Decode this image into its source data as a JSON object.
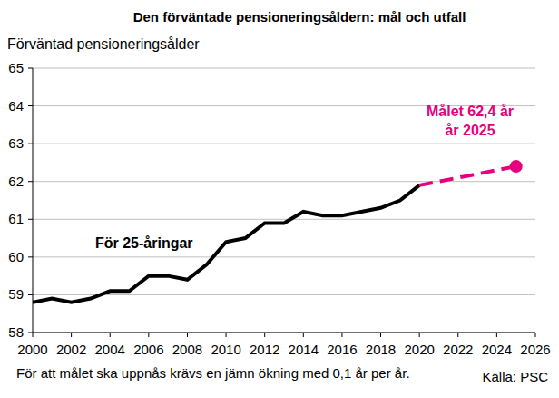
{
  "chart_data": {
    "type": "line",
    "title": "Den förväntade pensioneringsåldern: mål och utfall",
    "y_label": "Förväntad pensioneringsålder",
    "annotations": [
      "Målet 62,4 år",
      "år 2025"
    ],
    "footnote": "För att målet ska uppnås krävs en jämn ökning med 0,1 år per år.",
    "source": "Källa: PSC",
    "xlim": [
      2000,
      2026
    ],
    "xticks": [
      2000,
      2002,
      2004,
      2006,
      2008,
      2010,
      2012,
      2014,
      2016,
      2018,
      2020,
      2022,
      2024,
      2026
    ],
    "ylim": [
      58,
      65
    ],
    "yticks": [
      58,
      59,
      60,
      61,
      62,
      63,
      64,
      65
    ],
    "grid": true,
    "series": [
      {
        "name": "För 25-åringar",
        "color": "#000000",
        "line_style": "solid",
        "x": [
          2000,
          2001,
          2002,
          2003,
          2004,
          2005,
          2006,
          2007,
          2008,
          2009,
          2010,
          2011,
          2012,
          2013,
          2014,
          2015,
          2016,
          2017,
          2018,
          2019,
          2020
        ],
        "values": [
          58.8,
          58.9,
          58.8,
          58.9,
          59.1,
          59.1,
          59.5,
          59.5,
          59.4,
          59.8,
          60.4,
          60.5,
          60.9,
          60.9,
          61.2,
          61.1,
          61.1,
          61.2,
          61.3,
          61.5,
          61.9
        ]
      },
      {
        "color": "#e6007e",
        "line_style": "dashed",
        "x": [
          2020,
          2025
        ],
        "values": [
          61.9,
          62.4
        ]
      },
      {
        "type": "scatter",
        "color": "#e6007e",
        "marker": "circle",
        "x": [
          2025
        ],
        "values": [
          62.4
        ]
      }
    ]
  }
}
